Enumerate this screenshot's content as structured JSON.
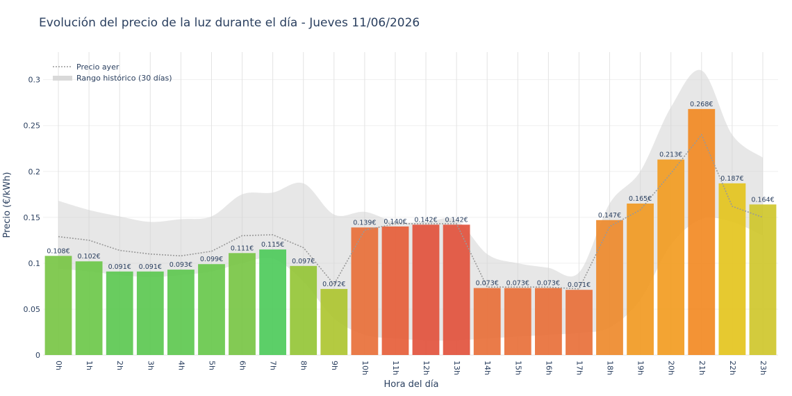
{
  "chart_data": {
    "type": "bar",
    "title": "Evolución del precio de la luz durante el día - Jueves 11/06/2026",
    "xlabel": "Hora del día",
    "ylabel": "Precio (€/kWh)",
    "ylim": [
      0,
      0.33
    ],
    "yticks": [
      0,
      0.05,
      0.1,
      0.15,
      0.2,
      0.25,
      0.3
    ],
    "ytick_labels": [
      "0",
      "0.05",
      "0.1",
      "0.15",
      "0.2",
      "0.25",
      "0.3"
    ],
    "grid": true,
    "legend_position": "top-left",
    "categories": [
      "0h",
      "1h",
      "2h",
      "3h",
      "4h",
      "5h",
      "6h",
      "7h",
      "8h",
      "9h",
      "10h",
      "11h",
      "12h",
      "13h",
      "14h",
      "15h",
      "16h",
      "17h",
      "18h",
      "19h",
      "20h",
      "21h",
      "22h",
      "23h"
    ],
    "values": [
      0.108,
      0.102,
      0.091,
      0.091,
      0.093,
      0.099,
      0.111,
      0.115,
      0.097,
      0.072,
      0.139,
      0.14,
      0.142,
      0.142,
      0.073,
      0.073,
      0.073,
      0.071,
      0.147,
      0.165,
      0.213,
      0.268,
      0.187,
      0.164
    ],
    "value_labels": [
      "0.108€",
      "0.102€",
      "0.091€",
      "0.091€",
      "0.093€",
      "0.099€",
      "0.111€",
      "0.115€",
      "0.097€",
      "0.072€",
      "0.139€",
      "0.140€",
      "0.142€",
      "0.142€",
      "0.073€",
      "0.073€",
      "0.073€",
      "0.071€",
      "0.147€",
      "0.165€",
      "0.213€",
      "0.268€",
      "0.187€",
      "0.164€"
    ],
    "bar_colors": [
      "#78c545",
      "#6cc84a",
      "#5cc851",
      "#5cc851",
      "#5ec850",
      "#68c84c",
      "#78c545",
      "#4ecb5b",
      "#95c537",
      "#aec631",
      "#e8703a",
      "#e65e3a",
      "#e2533d",
      "#e2533d",
      "#e8703a",
      "#e8703a",
      "#e8703a",
      "#e8703a",
      "#ee8a2c",
      "#f19a23",
      "#f29c22",
      "#f28a24",
      "#e4c41e",
      "#cfc72c"
    ],
    "series": [
      {
        "name": "Precio ayer",
        "style": "dotted",
        "color": "#999999",
        "values": [
          0.129,
          0.125,
          0.114,
          0.11,
          0.108,
          0.113,
          0.13,
          0.131,
          0.117,
          0.077,
          0.136,
          0.143,
          0.143,
          0.143,
          0.074,
          0.074,
          0.074,
          0.072,
          0.14,
          0.158,
          0.198,
          0.24,
          0.162,
          0.15
        ]
      },
      {
        "name": "Rango histórico (30 días)",
        "type": "band",
        "color": "#d3d3d3",
        "upper": [
          0.168,
          0.158,
          0.151,
          0.145,
          0.148,
          0.151,
          0.175,
          0.177,
          0.187,
          0.153,
          0.156,
          0.145,
          0.145,
          0.147,
          0.11,
          0.1,
          0.095,
          0.09,
          0.165,
          0.2,
          0.27,
          0.31,
          0.24,
          0.215
        ],
        "lower": [
          0.094,
          0.091,
          0.087,
          0.085,
          0.087,
          0.091,
          0.1,
          0.105,
          0.08,
          0.04,
          0.022,
          0.018,
          0.016,
          0.016,
          0.018,
          0.02,
          0.022,
          0.024,
          0.03,
          0.06,
          0.12,
          0.148,
          0.145,
          0.13
        ]
      }
    ]
  }
}
